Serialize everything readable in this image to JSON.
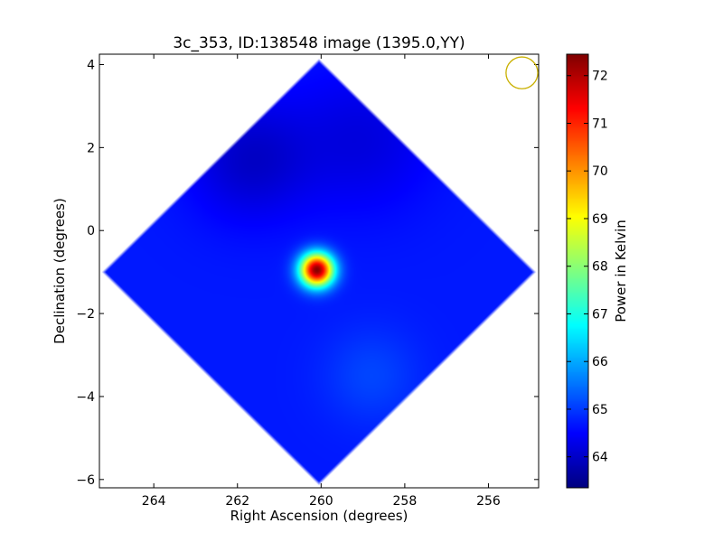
{
  "chart_data": {
    "type": "heatmap",
    "title": "3c_353, ID:138548 image (1395.0,YY)",
    "xlabel": "Right Ascension (degrees)",
    "ylabel": "Declination (degrees)",
    "colorbar_label": "Power in Kelvin",
    "xlim": [
      265.3,
      254.8
    ],
    "ylim": [
      -6.2,
      4.25
    ],
    "x_ticks": [
      264,
      262,
      260,
      258,
      256
    ],
    "y_ticks": [
      4,
      2,
      0,
      -2,
      -4,
      -6
    ],
    "colorbar_range": [
      63.35,
      72.45
    ],
    "colorbar_ticks": [
      64,
      65,
      66,
      67,
      68,
      69,
      70,
      71,
      72
    ],
    "colormap": "jet",
    "grid": false,
    "map_footprint": {
      "shape": "diamond",
      "center_ra": 260.05,
      "center_dec": -1.0,
      "half_width_ra": 5.2,
      "half_height_dec": 5.15
    },
    "background_level": 64.7,
    "features": [
      {
        "ra": 260.1,
        "dec": -0.95,
        "peak": 72.4,
        "sigma": 0.28,
        "note": "bright source"
      },
      {
        "ra": 261.7,
        "dec": 1.7,
        "peak": 64.0,
        "sigma": 1.0,
        "note": "faint low"
      },
      {
        "ra": 259.0,
        "dec": 2.2,
        "peak": 64.2,
        "sigma": 1.2,
        "note": "faint low"
      },
      {
        "ra": 258.8,
        "dec": -3.5,
        "peak": 65.1,
        "sigma": 0.8,
        "note": "mild high"
      }
    ],
    "beam_marker": {
      "ra": 255.2,
      "dec": 3.8,
      "radius_deg": 0.38,
      "color": "#c9b000"
    }
  }
}
